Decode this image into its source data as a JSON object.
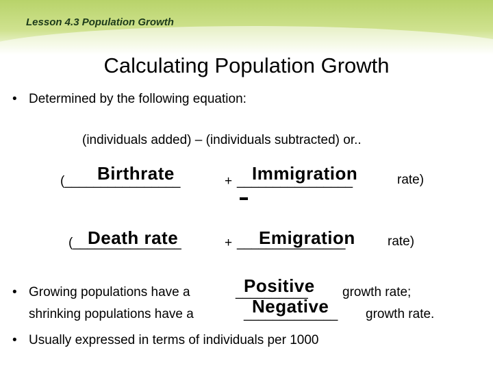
{
  "header": {
    "lesson": "Lesson 4.3 Population Growth"
  },
  "title": "Calculating Population Growth",
  "bullets": {
    "b1": "Determined by the following equation:",
    "b3": "Usually expressed in terms of individuals per 1000"
  },
  "equation": {
    "line": "(individuals added) – (individuals subtracted)   or..",
    "row1_open": "(________________",
    "row1_plus": "+",
    "row1_blank": "________________",
    "row1_close": "rate)",
    "row1_fill1": "Birthrate",
    "row1_fill2": "Immigration",
    "minus": "-",
    "row2_open": "(_______________",
    "row2_plus": "+",
    "row2_blank": "_______________",
    "row2_close": "rate)",
    "row2_fill1": "Death  rate",
    "row2_fill2": "Emigration"
  },
  "growing": {
    "line1_pre": "Growing populations have a",
    "line1_blank": "__________",
    "line1_post": "growth rate;",
    "line1_fill": "Positive",
    "line2_pre": "shrinking populations have a",
    "line2_blank": "_____________",
    "line2_post": "growth rate.",
    "line2_fill": "Negative"
  },
  "bullet_char": "•"
}
